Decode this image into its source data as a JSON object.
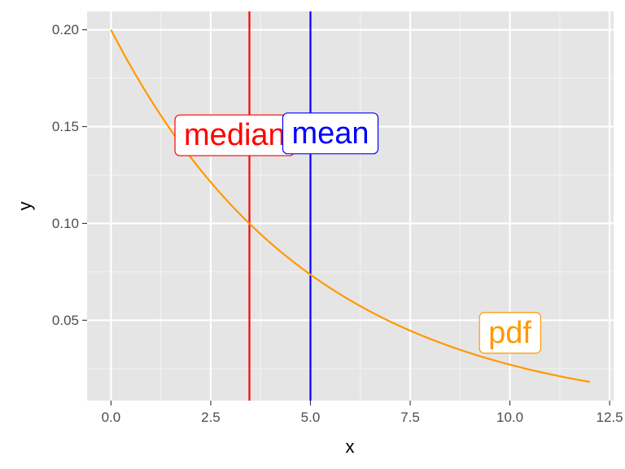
{
  "chart_data": {
    "type": "line",
    "title": "",
    "xlabel": "x",
    "ylabel": "y",
    "xlim": [
      -0.6,
      12.6
    ],
    "ylim": [
      0.0085,
      0.2095
    ],
    "x_ticks": [
      0.0,
      2.5,
      5.0,
      7.5,
      10.0,
      12.5
    ],
    "x_tick_labels": [
      "0.0",
      "2.5",
      "5.0",
      "7.5",
      "10.0",
      "12.5"
    ],
    "y_ticks": [
      0.05,
      0.1,
      0.15,
      0.2
    ],
    "y_tick_labels": [
      "0.05",
      "0.10",
      "0.15",
      "0.20"
    ],
    "grid": true,
    "background": "#e5e5e5",
    "series": [
      {
        "color": "#ff9900",
        "function": "0.2 * exp(-0.2 * x)",
        "x": [
          0,
          0.5,
          1,
          1.5,
          2,
          2.5,
          3,
          3.5,
          4,
          4.5,
          5,
          5.5,
          6,
          6.5,
          7,
          7.5,
          8,
          8.5,
          9,
          9.5,
          10,
          10.5,
          11,
          11.5,
          12
        ],
        "y": [
          0.2,
          0.181,
          0.164,
          0.148,
          0.134,
          0.121,
          0.11,
          0.099,
          0.09,
          0.081,
          0.074,
          0.067,
          0.06,
          0.055,
          0.049,
          0.045,
          0.04,
          0.037,
          0.033,
          0.03,
          0.027,
          0.024,
          0.022,
          0.02,
          0.018
        ]
      }
    ],
    "vlines": [
      {
        "x": 3.47,
        "color": "#ff0000"
      },
      {
        "x": 5.0,
        "color": "#0000ff"
      }
    ],
    "annotations": [
      {
        "text": "median",
        "x": 3.1,
        "y": 0.1455,
        "color": "#ff0000"
      },
      {
        "text": "mean",
        "x": 5.5,
        "y": 0.1465,
        "color": "#0000ff"
      },
      {
        "text": "pdf",
        "x": 10.0,
        "y": 0.0435,
        "color": "#ff9900"
      }
    ]
  }
}
